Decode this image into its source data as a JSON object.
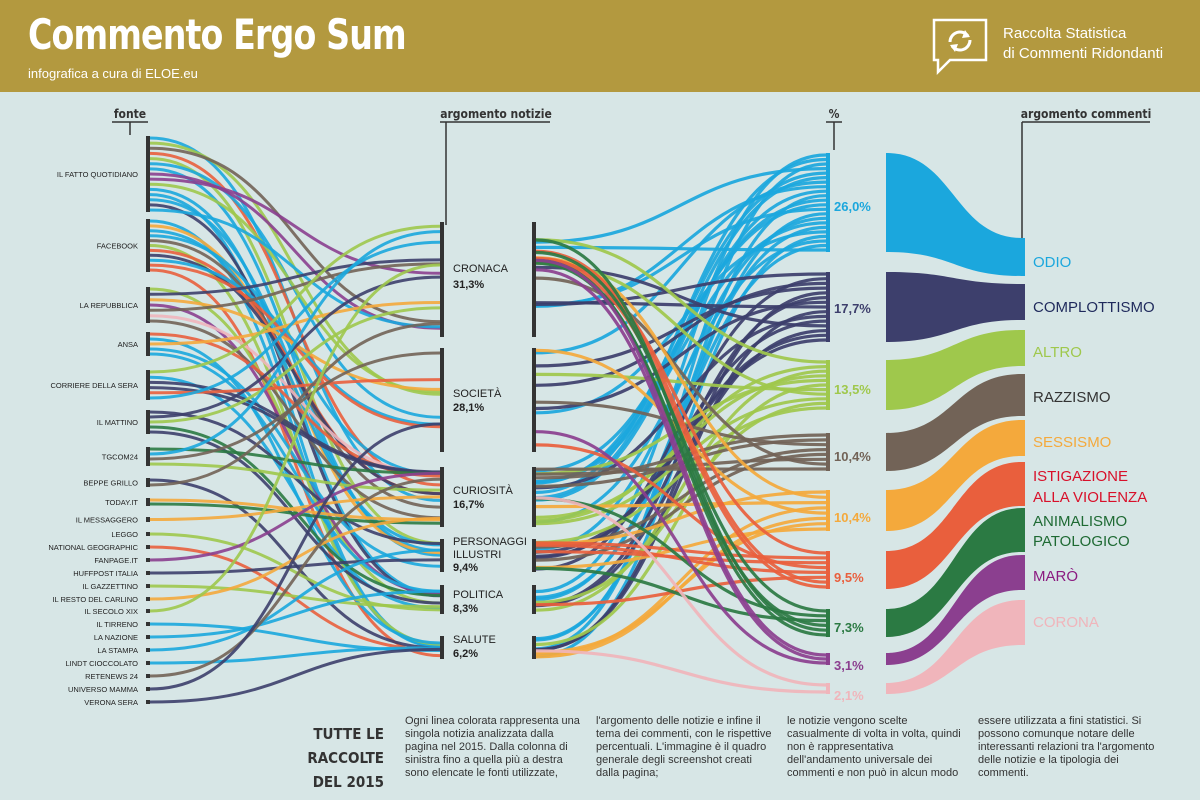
{
  "header": {
    "title": "Commento Ergo Sum",
    "subtitle": "infografica a cura di ELOE.eu",
    "brand_line1": "Raccolta Statistica",
    "brand_line2": "di Commenti Ridondanti"
  },
  "columns": {
    "fonte": "fonte",
    "argomento_notizie": "argomento notizie",
    "percent": "%",
    "argomento_commenti": "argomento commenti"
  },
  "sources": [
    "IL FATTO QUOTIDIANO",
    "FACEBOOK",
    "LA REPUBBLICA",
    "ANSA",
    "CORRIERE DELLA SERA",
    "IL MATTINO",
    "TGCOM24",
    "BEPPE GRILLO",
    "TODAY.IT",
    "IL MESSAGGERO",
    "LEGGO",
    "NATIONAL GEOGRAPHIC",
    "FANPAGE.IT",
    "HUFFPOST ITALIA",
    "IL GAZZETTINO",
    "IL RESTO DEL CARLINO",
    "IL SECOLO XIX",
    "IL TIRRENO",
    "LA NAZIONE",
    "LA STAMPA",
    "LINDT CIOCCOLATO",
    "RETENEWS 24",
    "UNIVERSO MAMMA",
    "VERONA SERA"
  ],
  "topics": [
    {
      "name": "CRONACA",
      "pct": "31,3%"
    },
    {
      "name": "SOCIETÀ",
      "pct": "28,1%"
    },
    {
      "name": "CURIOSITÀ",
      "pct": "16,7%"
    },
    {
      "name": "PERSONAGGI ILLUSTRI",
      "pct": "9,4%"
    },
    {
      "name": "POLITICA",
      "pct": "8,3%"
    },
    {
      "name": "SALUTE",
      "pct": "6,2%"
    }
  ],
  "comments": [
    {
      "name": "ODIO",
      "pct": "26,0%",
      "color": "#1ba7dd"
    },
    {
      "name": "COMPLOTTISMO",
      "pct": "17,7%",
      "color": "#3d3f6c"
    },
    {
      "name": "ALTRO",
      "pct": "13,5%",
      "color": "#9fc84c"
    },
    {
      "name": "RAZZISMO",
      "pct": "10,4%",
      "color": "#726357"
    },
    {
      "name": "SESSISMO",
      "pct": "10,4%",
      "color": "#f4a93c"
    },
    {
      "name": "ISTIGAZIONE ALLA VIOLENZA",
      "pct": "9,5%",
      "color": "#e95f3d"
    },
    {
      "name": "ANIMALISMO PATOLOGICO",
      "pct": "7,3%",
      "color": "#2b7a43"
    },
    {
      "name": "MARÒ",
      "pct": "3,1%",
      "color": "#8b3f8f"
    },
    {
      "name": "CORONA",
      "pct": "2,1%",
      "color": "#f0b5bb"
    }
  ],
  "comment_label_colors": [
    "#1ba7dd",
    "#1f2a5c",
    "#9fc84c",
    "#333333",
    "#f4a93c",
    "#d8102a",
    "#1e6a33",
    "#8b1a80",
    "#f0b5bb"
  ],
  "footer": {
    "title_line1": "TUTTE LE RACCOLTE",
    "title_line2": "DEL 2015",
    "col1": "Ogni linea colorata rappresenta una singola notizia analizzata dalla pagina nel 2015. Dalla colonna di sinistra fino a quella più a destra sono elencate le fonti utilizzate,",
    "col2": "l'argomento delle notizie e infine il tema dei commenti, con le rispettive percentuali. L'immagine è il quadro generale degli screenshot creati dalla pagina;",
    "col3": "le notizie vengono scelte casualmente di volta in volta, quindi non è rappresentativa dell'andamento universale dei commenti e non può in alcun modo",
    "col4": "essere utilizzata a fini statistici. Si possono comunque notare delle interessanti relazioni tra l'argomento delle notizie e la tipologia dei commenti."
  }
}
